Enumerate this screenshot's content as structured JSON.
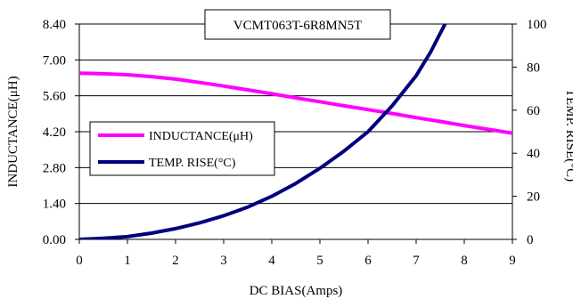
{
  "chart_data": {
    "type": "line",
    "title": "VCMT063T-6R8MN5T",
    "xlabel": "DC BIAS(Amps)",
    "ylabel_left": "INDUCTANCE(μH)",
    "ylabel_right": "TEMP. RISE(°C)",
    "xlim": [
      0,
      9
    ],
    "ylim_left": [
      0,
      8.4
    ],
    "ylim_right": [
      0,
      100
    ],
    "x_ticks": [
      "0",
      "1",
      "2",
      "3",
      "4",
      "5",
      "6",
      "7",
      "8",
      "9"
    ],
    "y_left_ticks": [
      "0.00",
      "1.40",
      "2.80",
      "4.20",
      "5.60",
      "7.00",
      "8.40"
    ],
    "y_right_ticks": [
      "0",
      "20",
      "40",
      "60",
      "80",
      "100"
    ],
    "grid": "horizontal",
    "legend_position": "middle-left",
    "series": [
      {
        "name": "INDUCTANCE(μH)",
        "axis": "left",
        "color": "#ff00ff",
        "x": [
          0,
          0.5,
          1,
          1.5,
          2,
          2.5,
          3,
          3.5,
          4,
          4.5,
          5,
          5.5,
          6,
          6.5,
          7,
          7.5,
          8,
          8.5,
          9
        ],
        "y": [
          6.48,
          6.46,
          6.42,
          6.35,
          6.25,
          6.12,
          5.98,
          5.83,
          5.68,
          5.52,
          5.37,
          5.21,
          5.06,
          4.91,
          4.75,
          4.6,
          4.44,
          4.29,
          4.14
        ]
      },
      {
        "name": "TEMP. RISE(°C)",
        "axis": "right",
        "color": "#00007f",
        "x": [
          0,
          0.5,
          1,
          1.5,
          2,
          2.5,
          3,
          3.5,
          4,
          4.5,
          5,
          5.5,
          6,
          6.5,
          7,
          7.3,
          7.6
        ],
        "y": [
          0,
          0.5,
          1.3,
          2.9,
          5,
          7.7,
          11,
          15,
          20,
          26,
          33,
          41,
          50,
          62,
          76,
          87,
          100
        ]
      }
    ]
  }
}
